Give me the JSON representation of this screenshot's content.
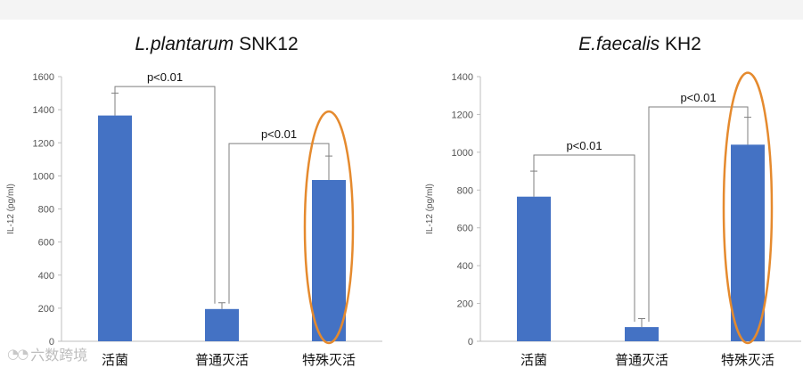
{
  "chart_data": [
    {
      "type": "bar",
      "title_italic": "L.plantarum",
      "title_rest": " SNK12",
      "ylabel": "IL-12 (pg/ml)",
      "categories": [
        "活菌",
        "普通灭活",
        "特殊灭活"
      ],
      "values": [
        1365,
        195,
        975
      ],
      "errors": [
        135,
        38,
        145
      ],
      "ylim": [
        0,
        1600
      ],
      "yticks": [
        0,
        200,
        400,
        600,
        800,
        1000,
        1200,
        1400,
        1600
      ],
      "grid": false,
      "bar_color": "#4472C4",
      "highlight_color": "#E58A2E",
      "highlight_category": "特殊灭活",
      "annotations": [
        {
          "text": "p<0.01",
          "from": "活菌",
          "to": "普通灭活",
          "level": 1540
        },
        {
          "text": "p<0.01",
          "from": "普通灭活",
          "to": "特殊灭活",
          "level": 1195
        }
      ]
    },
    {
      "type": "bar",
      "title_italic": "E.faecalis",
      "title_rest": " KH2",
      "ylabel": "IL-12 (pg/ml)",
      "categories": [
        "活菌",
        "普通灭活",
        "特殊灭活"
      ],
      "values": [
        765,
        75,
        1040
      ],
      "errors": [
        135,
        45,
        145
      ],
      "ylim": [
        0,
        1400
      ],
      "yticks": [
        0,
        200,
        400,
        600,
        800,
        1000,
        1200,
        1400
      ],
      "grid": false,
      "bar_color": "#4472C4",
      "highlight_color": "#E58A2E",
      "highlight_category": "特殊灭活",
      "annotations": [
        {
          "text": "p<0.01",
          "from": "活菌",
          "to": "普通灭活",
          "level": 985
        },
        {
          "text": "p<0.01",
          "from": "普通灭活",
          "to": "特殊灭活",
          "level": 1240
        }
      ]
    }
  ],
  "watermark": {
    "icon": "wechat-icon",
    "text": "六数跨境"
  }
}
